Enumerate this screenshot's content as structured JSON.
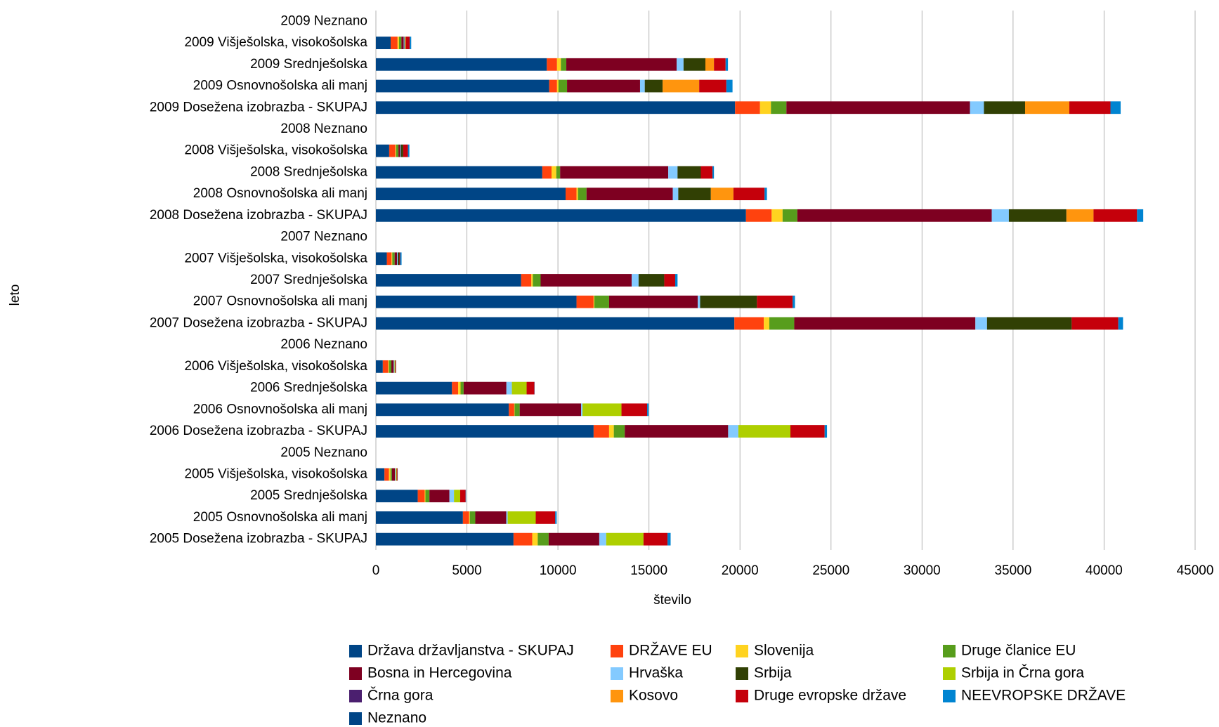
{
  "chart_data": {
    "type": "stacked-barh",
    "x_label": "število",
    "y_label": "leto",
    "categories": [
      "2005 Dosežena izobrazba - SKUPAJ",
      "2005 Osnovnošolska ali manj",
      "2005 Srednješolska",
      "2005 Višješolska, visokošolska",
      "2005 Neznano",
      "2006 Dosežena izobrazba - SKUPAJ",
      "2006 Osnovnošolska ali manj",
      "2006 Srednješolska",
      "2006 Višješolska, visokošolska",
      "2006 Neznano",
      "2007 Dosežena izobrazba - SKUPAJ",
      "2007 Osnovnošolska ali manj",
      "2007 Srednješolska",
      "2007 Višješolska, visokošolska",
      "2007 Neznano",
      "2008 Dosežena izobrazba - SKUPAJ",
      "2008 Osnovnošolska ali manj",
      "2008 Srednješolska",
      "2008 Višješolska, visokošolska",
      "2008 Neznano",
      "2009 Dosežena izobrazba - SKUPAJ",
      "2009 Osnovnošolska ali manj",
      "2009 Srednješolska",
      "2009 Višješolska, visokošolska",
      "2009 Neznano"
    ],
    "series": [
      {
        "name": "Država državljanstva - SKUPAJ",
        "color": "#004586",
        "values": [
          7560,
          4780,
          2300,
          470,
          0,
          11960,
          7300,
          4180,
          380,
          0,
          19690,
          11020,
          7980,
          600,
          0,
          20330,
          10420,
          9140,
          730,
          0,
          19730,
          9520,
          9390,
          810,
          0
        ]
      },
      {
        "name": "DRŽAVE EU",
        "color": "#ff420e",
        "values": [
          1030,
          340,
          380,
          250,
          0,
          850,
          300,
          340,
          300,
          0,
          1620,
          940,
          560,
          260,
          0,
          1410,
          600,
          510,
          340,
          0,
          1370,
          430,
          560,
          380,
          0
        ]
      },
      {
        "name": "Slovenija",
        "color": "#ffd320",
        "values": [
          300,
          40,
          40,
          80,
          0,
          260,
          20,
          130,
          40,
          0,
          300,
          40,
          80,
          40,
          0,
          600,
          80,
          260,
          40,
          0,
          600,
          80,
          210,
          80,
          0
        ]
      },
      {
        "name": "Druge članice EU",
        "color": "#579d1c",
        "values": [
          600,
          300,
          220,
          80,
          0,
          600,
          280,
          170,
          130,
          0,
          1370,
          810,
          430,
          130,
          0,
          810,
          470,
          210,
          130,
          0,
          850,
          470,
          300,
          130,
          0
        ]
      },
      {
        "name": "Bosna in Hercegovina",
        "color": "#7e0021",
        "values": [
          2780,
          1700,
          1100,
          170,
          0,
          5680,
          3370,
          2350,
          130,
          0,
          9950,
          4870,
          5000,
          130,
          0,
          10680,
          4740,
          5940,
          90,
          0,
          10080,
          4010,
          6060,
          130,
          0
        ]
      },
      {
        "name": "Hrvaška",
        "color": "#83caff",
        "values": [
          380,
          80,
          250,
          40,
          0,
          560,
          80,
          300,
          40,
          0,
          640,
          130,
          380,
          40,
          0,
          940,
          300,
          510,
          40,
          0,
          770,
          260,
          380,
          40,
          0
        ]
      },
      {
        "name": "Srbija",
        "color": "#314004",
        "values": [
          0,
          0,
          0,
          0,
          0,
          0,
          0,
          0,
          0,
          0,
          4650,
          3120,
          1410,
          90,
          0,
          3160,
          1790,
          1280,
          130,
          0,
          2260,
          980,
          1200,
          40,
          0
        ]
      },
      {
        "name": "Srbija in Črna gora",
        "color": "#aecf00",
        "values": [
          2050,
          1540,
          340,
          50,
          0,
          2860,
          2140,
          810,
          40,
          0,
          0,
          0,
          0,
          0,
          0,
          0,
          0,
          0,
          0,
          0,
          0,
          0,
          0,
          0,
          0
        ]
      },
      {
        "name": "Črna gora",
        "color": "#4b1f6f",
        "values": [
          0,
          0,
          0,
          0,
          0,
          0,
          0,
          0,
          0,
          0,
          0,
          0,
          0,
          0,
          0,
          0,
          0,
          0,
          0,
          0,
          0,
          0,
          0,
          0,
          0
        ]
      },
      {
        "name": "Kosovo",
        "color": "#ff950e",
        "values": [
          0,
          0,
          0,
          0,
          0,
          0,
          0,
          0,
          0,
          0,
          0,
          0,
          0,
          0,
          0,
          1490,
          1240,
          0,
          0,
          0,
          2430,
          2010,
          470,
          40,
          0
        ]
      },
      {
        "name": "Druge evropske države",
        "color": "#c5000b",
        "values": [
          1320,
          1070,
          300,
          50,
          0,
          1880,
          1410,
          430,
          40,
          0,
          2560,
          1960,
          600,
          40,
          0,
          2390,
          1710,
          640,
          260,
          0,
          2260,
          1490,
          640,
          210,
          0
        ]
      },
      {
        "name": "NEEVROPSKE DRŽAVE",
        "color": "#0084d1",
        "values": [
          170,
          80,
          20,
          10,
          0,
          130,
          80,
          10,
          10,
          0,
          260,
          130,
          130,
          80,
          0,
          340,
          130,
          80,
          80,
          0,
          560,
          340,
          130,
          80,
          0
        ]
      },
      {
        "name": "Neznano",
        "color": "#004586",
        "values": [
          0,
          0,
          0,
          0,
          0,
          0,
          0,
          0,
          0,
          0,
          0,
          0,
          0,
          0,
          0,
          0,
          0,
          0,
          0,
          0,
          0,
          0,
          0,
          0,
          0
        ]
      }
    ],
    "xlim": [
      0,
      45000
    ],
    "xticks": [
      0,
      5000,
      10000,
      15000,
      20000,
      25000,
      30000,
      35000,
      40000,
      45000
    ],
    "grid": true,
    "legend": "bottom"
  }
}
